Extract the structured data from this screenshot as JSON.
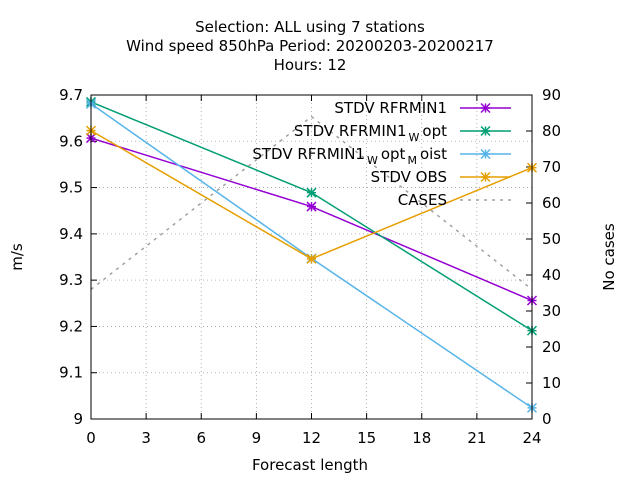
{
  "chart_data": {
    "type": "line",
    "title_lines": [
      "Selection: ALL using     7 stations",
      "Wind speed 850hPa   Period: 20200203-20200217",
      "Hours:  12"
    ],
    "xlabel": "Forecast length",
    "ylabel": "m/s",
    "y2label": "No cases",
    "xlim": [
      0,
      24
    ],
    "ylim": [
      9.0,
      9.7
    ],
    "y2lim": [
      0,
      90
    ],
    "xticks": [
      0,
      3,
      6,
      9,
      12,
      15,
      18,
      21,
      24
    ],
    "yticks": [
      "9",
      "9.1",
      "9.2",
      "9.3",
      "9.4",
      "9.5",
      "9.6",
      "9.7"
    ],
    "y2ticks": [
      0,
      10,
      20,
      30,
      40,
      50,
      60,
      70,
      80,
      90
    ],
    "grid": true,
    "legend_position": "top-right",
    "series": [
      {
        "name": "STDV RFRMIN1",
        "legend_parts": [
          {
            "t": "STDV RFRMIN1",
            "sub": false
          }
        ],
        "color": "#9400d3",
        "marker": "x-star",
        "axis": "y1",
        "x": [
          0,
          12,
          24
        ],
        "values": [
          9.607,
          9.459,
          9.256
        ]
      },
      {
        "name": "STDV RFRMIN1_W opt",
        "legend_parts": [
          {
            "t": "STDV RFRMIN1",
            "sub": false
          },
          {
            "t": "W",
            "sub": true
          },
          {
            "t": "opt",
            "sub": false
          }
        ],
        "color": "#009e73",
        "marker": "x-star",
        "axis": "y1",
        "x": [
          0,
          12,
          24
        ],
        "values": [
          9.685,
          9.489,
          9.191
        ]
      },
      {
        "name": "STDV RFRMIN1_W opt_M oist",
        "legend_parts": [
          {
            "t": "STDV RFRMIN1",
            "sub": false
          },
          {
            "t": "W",
            "sub": true
          },
          {
            "t": "opt",
            "sub": false
          },
          {
            "t": "M",
            "sub": true
          },
          {
            "t": "oist",
            "sub": false
          }
        ],
        "color": "#56b4e9",
        "marker": "x-star",
        "axis": "y1",
        "x": [
          0,
          12,
          24
        ],
        "values": [
          9.681,
          9.347,
          9.024
        ]
      },
      {
        "name": "STDV OBS",
        "legend_parts": [
          {
            "t": "STDV OBS",
            "sub": false
          }
        ],
        "color": "#e69f00",
        "marker": "x-star",
        "axis": "y1",
        "x": [
          0,
          12,
          24
        ],
        "values": [
          9.623,
          9.346,
          9.543
        ]
      },
      {
        "name": "CASES",
        "legend_parts": [
          {
            "t": "CASES",
            "sub": false
          }
        ],
        "color": "#a0a0a0",
        "marker": "none",
        "dashed": true,
        "axis": "y2",
        "x": [
          0,
          12,
          24
        ],
        "values": [
          36,
          84,
          36
        ]
      }
    ]
  }
}
